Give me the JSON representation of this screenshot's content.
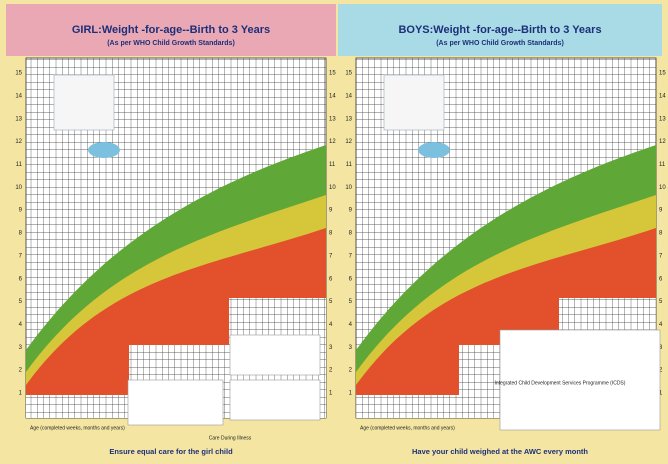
{
  "girl": {
    "title": "GIRL:Weight -for-age--Birth to 3 Years",
    "subtitle": "(As per WHO Child Growth Standards)",
    "y_labels": [
      "1",
      "2",
      "3",
      "4",
      "5",
      "6",
      "7",
      "8",
      "9",
      "10",
      "11",
      "12",
      "13",
      "14",
      "15"
    ],
    "x_axis_label": "Age (completed weeks, months and years)",
    "note": "Care During Illness",
    "footer": "Ensure equal care for the girl child"
  },
  "boys": {
    "title": "BOYS:Weight -for-age--Birth to 3 Years",
    "subtitle": "(As per WHO Child Growth Standards)",
    "y_labels": [
      "1",
      "2",
      "3",
      "4",
      "5",
      "6",
      "7",
      "8",
      "9",
      "10",
      "11",
      "12",
      "13",
      "14",
      "15"
    ],
    "x_axis_label": "Age (completed weeks, months and years)",
    "section": "Integrated Child Development Services Programme (ICDS)",
    "footer": "Have your child weighed at the AWC every month"
  }
}
